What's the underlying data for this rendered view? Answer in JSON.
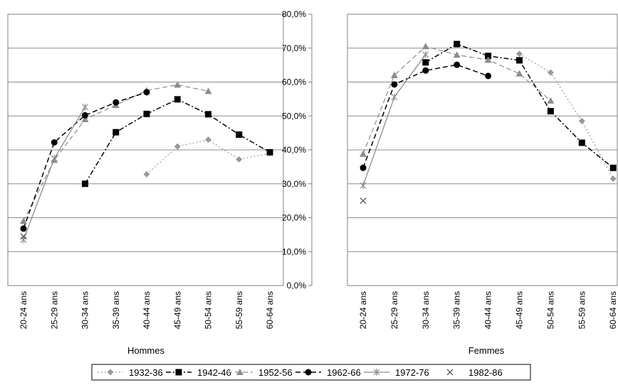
{
  "chart_data": {
    "type": "line",
    "categories": [
      "20-24 ans",
      "25-29 ans",
      "30-34 ans",
      "35-39 ans",
      "40-44 ans",
      "45-49 ans",
      "50-54 ans",
      "55-59 ans",
      "60-64 ans"
    ],
    "y_axis": {
      "min": 0,
      "max": 80,
      "step": 10,
      "tick_labels": [
        "0,0%",
        "10,0%",
        "20,0%",
        "30,0%",
        "40,0%",
        "50,0%",
        "60,0%",
        "70,0%",
        "80,0%"
      ]
    },
    "grid": true,
    "legend_position": "bottom",
    "series_styles": {
      "1932-36": {
        "color": "#999999",
        "dash": "2,3",
        "marker": "diamond",
        "width": 1.2
      },
      "1942-46": {
        "color": "#000000",
        "dash": "7,3,2,3",
        "marker": "square",
        "width": 1.5
      },
      "1952-56": {
        "color": "#8c8c8c",
        "dash": "7,4",
        "marker": "triangle",
        "width": 1.2
      },
      "1962-66": {
        "color": "#000000",
        "dash": "7,4",
        "marker": "circle",
        "width": 1.5
      },
      "1972-76": {
        "color": "#8c8c8c",
        "dash": "",
        "marker": "star",
        "width": 1.3
      },
      "1982-86": {
        "color": "#555555",
        "dash": "",
        "marker": "x",
        "width": 1.2
      }
    },
    "panels": [
      {
        "xlabel": "Hommes",
        "series": [
          {
            "name": "1932-36",
            "values": [
              null,
              null,
              null,
              null,
              32.8,
              41.0,
              43.0,
              37.2,
              39.0
            ]
          },
          {
            "name": "1942-46",
            "values": [
              null,
              null,
              30.0,
              45.2,
              50.6,
              54.9,
              50.5,
              44.5,
              39.3
            ]
          },
          {
            "name": "1952-56",
            "values": [
              19.0,
              37.0,
              49.0,
              53.2,
              57.5,
              59.2,
              57.3,
              null,
              null
            ]
          },
          {
            "name": "1962-66",
            "values": [
              16.8,
              42.2,
              50.2,
              54.0,
              57.0,
              null,
              null,
              null,
              null
            ]
          },
          {
            "name": "1972-76",
            "values": [
              13.5,
              37.5,
              52.6,
              null,
              null,
              null,
              null,
              null,
              null
            ]
          },
          {
            "name": "1982-86",
            "values": [
              14.5,
              null,
              null,
              null,
              null,
              null,
              null,
              null,
              null
            ]
          }
        ]
      },
      {
        "xlabel": "Femmes",
        "series": [
          {
            "name": "1932-36",
            "values": [
              null,
              null,
              null,
              null,
              null,
              68.3,
              62.8,
              48.5,
              31.5
            ]
          },
          {
            "name": "1942-46",
            "values": [
              null,
              null,
              65.8,
              71.2,
              67.7,
              66.4,
              51.4,
              42.1,
              34.7
            ]
          },
          {
            "name": "1952-56",
            "values": [
              38.8,
              62.0,
              70.5,
              68.0,
              66.5,
              62.5,
              54.5,
              null,
              null
            ]
          },
          {
            "name": "1962-66",
            "values": [
              34.7,
              59.3,
              63.4,
              65.1,
              61.8,
              null,
              null,
              null,
              null
            ]
          },
          {
            "name": "1972-76",
            "values": [
              29.5,
              55.6,
              68.1,
              null,
              null,
              null,
              null,
              null,
              null
            ]
          },
          {
            "name": "1982-86",
            "values": [
              25.0,
              null,
              null,
              null,
              null,
              null,
              null,
              null,
              null
            ]
          }
        ]
      }
    ]
  }
}
